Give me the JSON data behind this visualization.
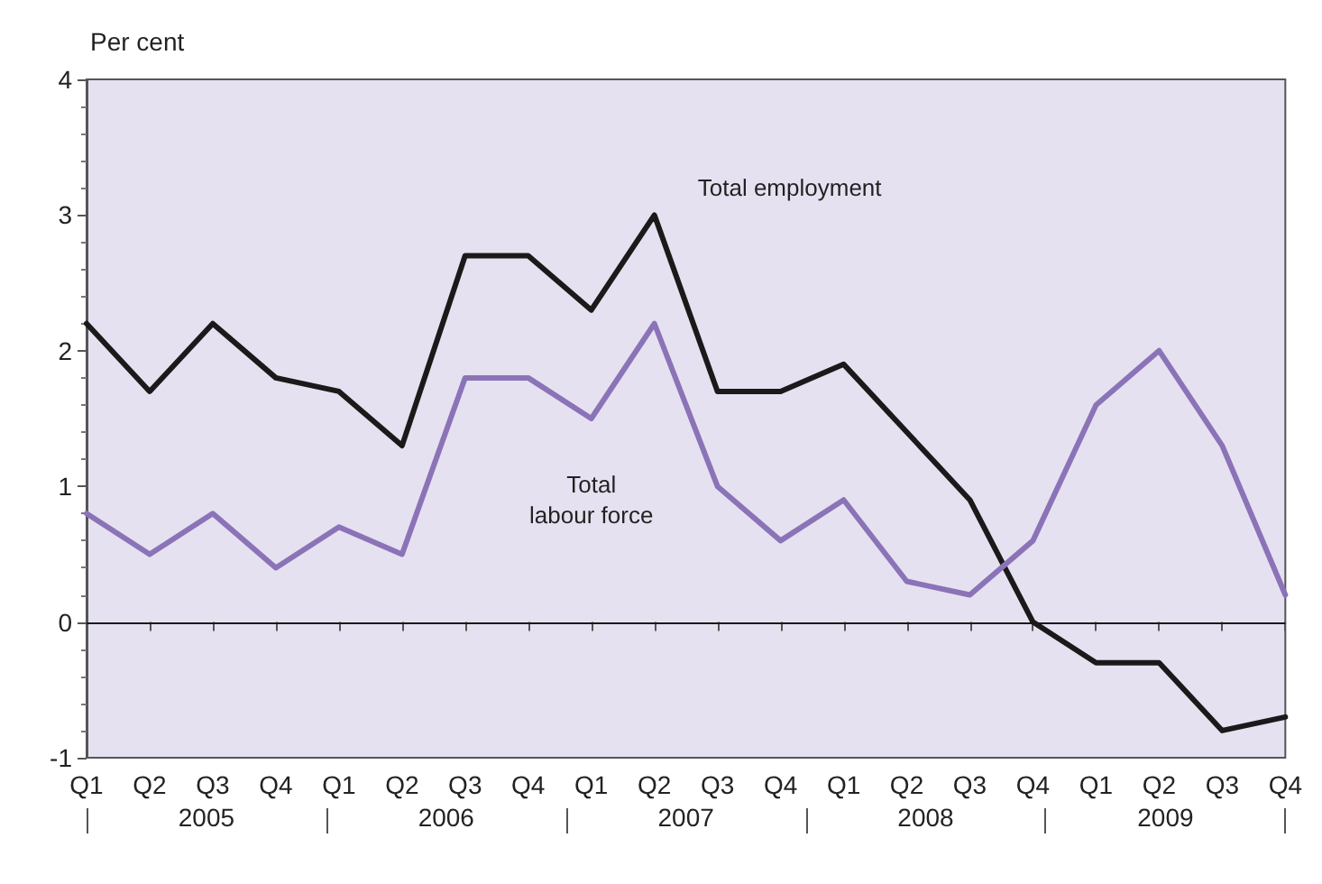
{
  "chart_data": {
    "type": "line",
    "ylabel": "Per cent",
    "categories": [
      "Q1",
      "Q2",
      "Q3",
      "Q4",
      "Q1",
      "Q2",
      "Q3",
      "Q4",
      "Q1",
      "Q2",
      "Q3",
      "Q4",
      "Q1",
      "Q2",
      "Q3",
      "Q4",
      "Q1",
      "Q2",
      "Q3",
      "Q4"
    ],
    "series": [
      {
        "name": "Total employment",
        "color": "#1a1a1a",
        "values": [
          2.2,
          1.7,
          2.2,
          1.8,
          1.7,
          1.3,
          2.7,
          2.7,
          2.3,
          3.0,
          1.7,
          1.7,
          1.9,
          1.4,
          0.9,
          0.0,
          -0.3,
          -0.3,
          -0.8,
          -0.7
        ]
      },
      {
        "name": "Total labour force",
        "color": "#8b73b8",
        "values": [
          0.8,
          0.5,
          0.8,
          0.4,
          0.7,
          0.5,
          1.8,
          1.8,
          1.5,
          2.2,
          1.0,
          0.6,
          0.9,
          0.3,
          0.2,
          0.6,
          1.6,
          2.0,
          1.3,
          0.2
        ]
      }
    ],
    "annotations": [
      "2005",
      "2006",
      "2007",
      "2008",
      "2009"
    ],
    "ylim": [
      -1,
      4
    ],
    "yticks": [
      -1,
      0,
      1,
      2,
      3,
      4
    ],
    "ref_lines": [
      {
        "axis": "y",
        "value": 0,
        "color": "#1a1a1a"
      }
    ],
    "grid": false,
    "marker": "none",
    "line_style": "solid"
  }
}
